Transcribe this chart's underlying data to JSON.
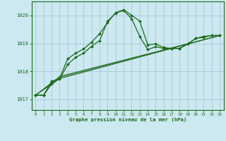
{
  "title": "Graphe pression niveau de la mer (hPa)",
  "background_color": "#cce8f0",
  "grid_color": "#aacfdc",
  "line_color": "#1a6b1a",
  "xlim": [
    -0.5,
    23.5
  ],
  "ylim": [
    1016.62,
    1020.5
  ],
  "yticks": [
    1017,
    1018,
    1019,
    1020
  ],
  "xticks": [
    0,
    1,
    2,
    3,
    4,
    5,
    6,
    7,
    8,
    9,
    10,
    11,
    12,
    13,
    14,
    15,
    16,
    17,
    18,
    19,
    20,
    21,
    22,
    23
  ],
  "line1_x": [
    0,
    1,
    2,
    3,
    4,
    5,
    6,
    7,
    8,
    9,
    10,
    11,
    12,
    13,
    14,
    15,
    16,
    17,
    18,
    19,
    20,
    21,
    22,
    23
  ],
  "line1_y": [
    1017.15,
    1017.15,
    1017.55,
    1017.75,
    1018.45,
    1018.65,
    1018.8,
    1019.05,
    1019.35,
    1019.75,
    1020.1,
    1020.2,
    1020.0,
    1019.8,
    1018.95,
    1018.98,
    1018.85,
    1018.82,
    1018.82,
    1018.98,
    1019.18,
    1019.25,
    1019.28,
    1019.28
  ],
  "line2_x": [
    0,
    1,
    2,
    3,
    4,
    5,
    6,
    7,
    8,
    9,
    10,
    11,
    12,
    13,
    14,
    15,
    16,
    17,
    18,
    19,
    20,
    21,
    22,
    23
  ],
  "line2_y": [
    1017.15,
    1017.15,
    1017.65,
    1017.72,
    1018.25,
    1018.5,
    1018.65,
    1018.9,
    1019.1,
    1019.8,
    1020.08,
    1020.18,
    1019.88,
    1019.25,
    1018.78,
    1018.88,
    1018.82,
    1018.82,
    1018.82,
    1018.98,
    1019.18,
    1019.22,
    1019.28,
    1019.28
  ],
  "line3_x": [
    0,
    3,
    23
  ],
  "line3_y": [
    1017.15,
    1017.78,
    1019.28
  ],
  "line4_x": [
    0,
    3,
    23
  ],
  "line4_y": [
    1017.15,
    1017.82,
    1019.28
  ],
  "line5_x": [
    0,
    3,
    23
  ],
  "line5_y": [
    1017.15,
    1017.74,
    1019.28
  ]
}
